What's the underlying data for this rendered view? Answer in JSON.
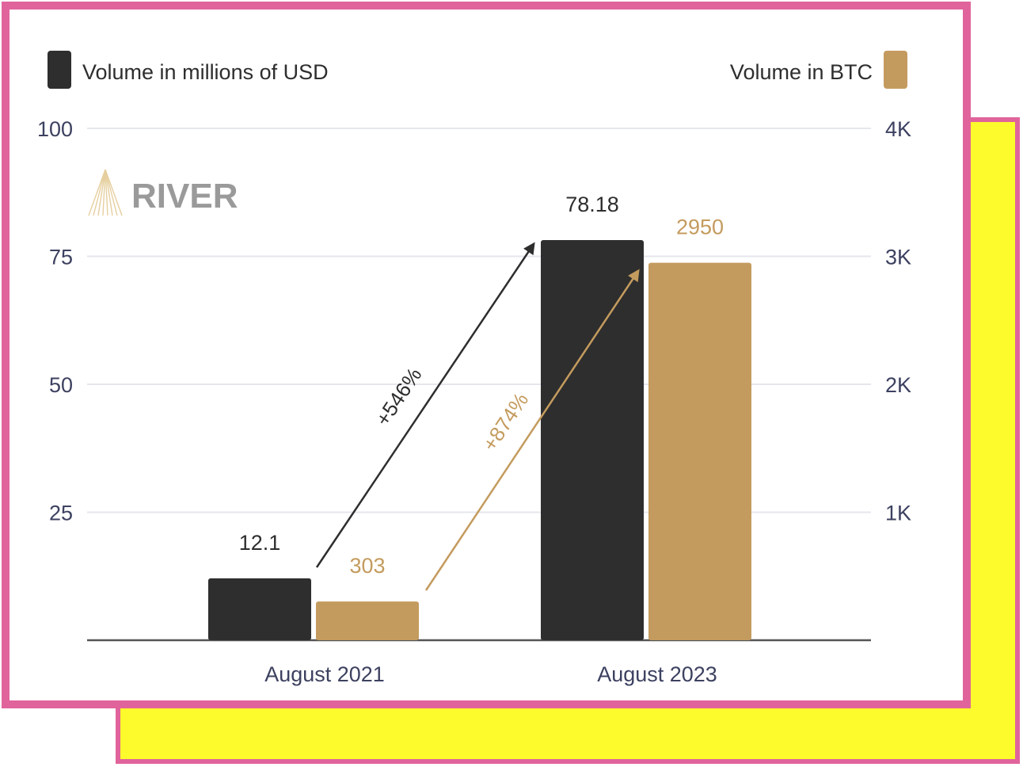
{
  "colors": {
    "usd": "#2e2e2e",
    "btc": "#c49b5e",
    "tick_text": "#3d4160",
    "grid": "#e6e7ec",
    "frame_border": "#e0649b",
    "back_fill": "#fdfb2c"
  },
  "logo": {
    "text": "RIVER",
    "icon": "river-logo-icon"
  },
  "chart_data": {
    "type": "bar",
    "categories": [
      "August 2021",
      "August 2023"
    ],
    "series": [
      {
        "name": "Volume in millions of USD",
        "axis": "left",
        "values": [
          12.1,
          78.18
        ],
        "labels": [
          "12.1",
          "78.18"
        ]
      },
      {
        "name": "Volume in BTC",
        "axis": "right",
        "values": [
          303,
          2950
        ],
        "labels": [
          "303",
          "2950"
        ]
      }
    ],
    "y_left": {
      "min": 0,
      "max": 100,
      "ticks": [
        25,
        50,
        75,
        100
      ],
      "tick_labels": [
        "25",
        "50",
        "75",
        "100"
      ]
    },
    "y_right": {
      "min": 0,
      "max": 4000,
      "ticks": [
        1000,
        2000,
        3000,
        4000
      ],
      "tick_labels": [
        "1K",
        "2K",
        "3K",
        "4K"
      ]
    },
    "annotations": [
      {
        "text": "+546%",
        "series": "Volume in millions of USD"
      },
      {
        "text": "+874%",
        "series": "Volume in BTC"
      }
    ],
    "legend": "top-left / top-right",
    "grid": true
  }
}
